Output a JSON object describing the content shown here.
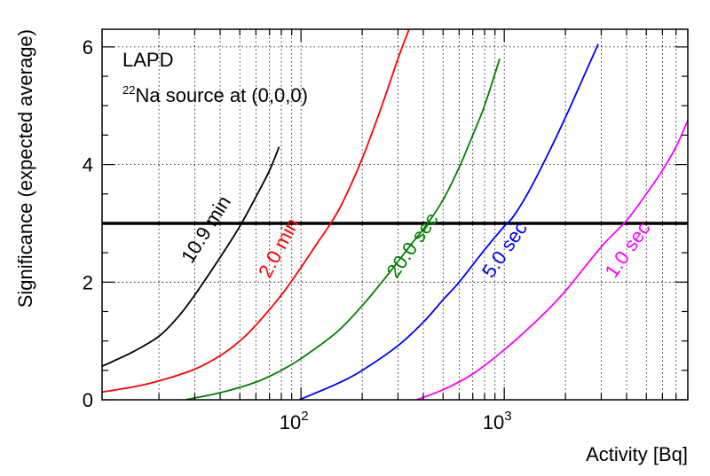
{
  "chart_data": {
    "type": "line",
    "xscale": "log",
    "xlim": [
      10.5,
      8000
    ],
    "ylim": [
      0,
      6.3
    ],
    "grid": true,
    "xlabel": "Activity [Bq]",
    "ylabel": "Significance (expected average)",
    "xticks": [
      {
        "value": 100,
        "base": "10",
        "exp": "2"
      },
      {
        "value": 1000,
        "base": "10",
        "exp": "3"
      }
    ],
    "yticks": [
      {
        "value": 0,
        "label": "0"
      },
      {
        "value": 2,
        "label": "2"
      },
      {
        "value": 4,
        "label": "4"
      },
      {
        "value": 6,
        "label": "6"
      }
    ],
    "threshold": 3,
    "annotations": {
      "line1": "LAPD",
      "line2_sup": "22",
      "line2_text": "Na source at (0,0,0)"
    },
    "series": [
      {
        "name": "10.9 min",
        "color": "#000000",
        "x": [
          10.5,
          12,
          15,
          20,
          25,
          30,
          40,
          50,
          60,
          70,
          78
        ],
        "y": [
          0.57,
          0.66,
          0.82,
          1.08,
          1.42,
          1.78,
          2.42,
          2.95,
          3.45,
          3.9,
          4.3
        ],
        "label_at": {
          "x": 29,
          "y": 2.3,
          "angle": -58
        }
      },
      {
        "name": "2.0 min",
        "color": "#ff0000",
        "x": [
          10.5,
          15,
          20,
          30,
          40,
          50,
          60,
          80,
          100,
          120,
          140,
          160,
          200,
          250,
          300,
          340
        ],
        "y": [
          0.13,
          0.22,
          0.32,
          0.52,
          0.75,
          1.0,
          1.27,
          1.78,
          2.25,
          2.66,
          3.0,
          3.35,
          4.1,
          5.0,
          5.8,
          6.3
        ],
        "label_at": {
          "x": 70,
          "y": 2.05,
          "angle": -62
        }
      },
      {
        "name": "20.0 sec",
        "color": "#008000",
        "x": [
          27,
          40,
          60,
          80,
          100,
          150,
          200,
          250,
          300,
          350,
          420,
          500,
          600,
          700,
          800,
          950
        ],
        "y": [
          0.0,
          0.12,
          0.3,
          0.5,
          0.7,
          1.15,
          1.6,
          2.0,
          2.35,
          2.65,
          3.0,
          3.4,
          3.95,
          4.5,
          5.0,
          5.8
        ],
        "label_at": {
          "x": 295,
          "y": 2.05,
          "angle": -55
        }
      },
      {
        "name": "5.0 sec",
        "color": "#0000ff",
        "x": [
          98,
          150,
          200,
          300,
          400,
          500,
          600,
          800,
          1000,
          1100,
          1300,
          1600,
          2000,
          2500,
          2900
        ],
        "y": [
          0.0,
          0.27,
          0.5,
          0.92,
          1.32,
          1.7,
          2.0,
          2.55,
          2.95,
          3.1,
          3.5,
          4.1,
          4.8,
          5.55,
          6.05
        ],
        "label_at": {
          "x": 870,
          "y": 2.05,
          "angle": -55
        }
      },
      {
        "name": "1.0 sec",
        "color": "#ff00ff",
        "x": [
          370,
          500,
          700,
          1000,
          1500,
          2000,
          3000,
          4000,
          5000,
          6000,
          7000,
          8000
        ],
        "y": [
          0.0,
          0.17,
          0.44,
          0.85,
          1.4,
          1.85,
          2.6,
          3.05,
          3.5,
          3.9,
          4.3,
          4.75
        ],
        "label_at": {
          "x": 3500,
          "y": 2.05,
          "angle": -55
        }
      }
    ]
  }
}
